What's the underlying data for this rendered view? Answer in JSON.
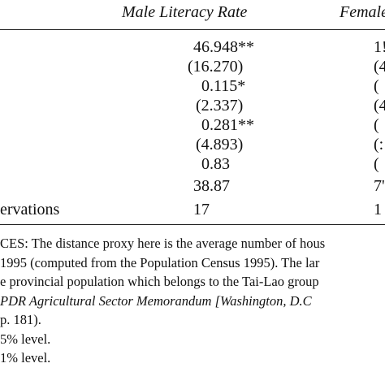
{
  "header": {
    "male": "Male Literacy Rate",
    "female": "Female"
  },
  "rows": [
    {
      "male": "46.948**",
      "female": "1!"
    },
    {
      "male": "(16.270)",
      "female": "(4"
    },
    {
      "male": "0.115*",
      "female": "("
    },
    {
      "male": "(2.337)",
      "female": "(4"
    },
    {
      "male": "0.281**",
      "female": "("
    },
    {
      "male": "(4.893)",
      "female": "(:"
    },
    {
      "male": "0.83",
      "female": "("
    },
    {
      "male": "38.87",
      "female": "7'"
    },
    {
      "label": "ervations",
      "male": "17",
      "female": "1"
    }
  ],
  "notes": [
    "CES:  The distance proxy here is the average number of hous",
    " 1995 (computed from the Population Census 1995).  The lar",
    "e provincial population which belongs to the Tai-Lao group",
    " PDR Agricultural Sector Memorandum [Washington, D.C",
    "p. 181).",
    "5% level.",
    " 1% level."
  ]
}
